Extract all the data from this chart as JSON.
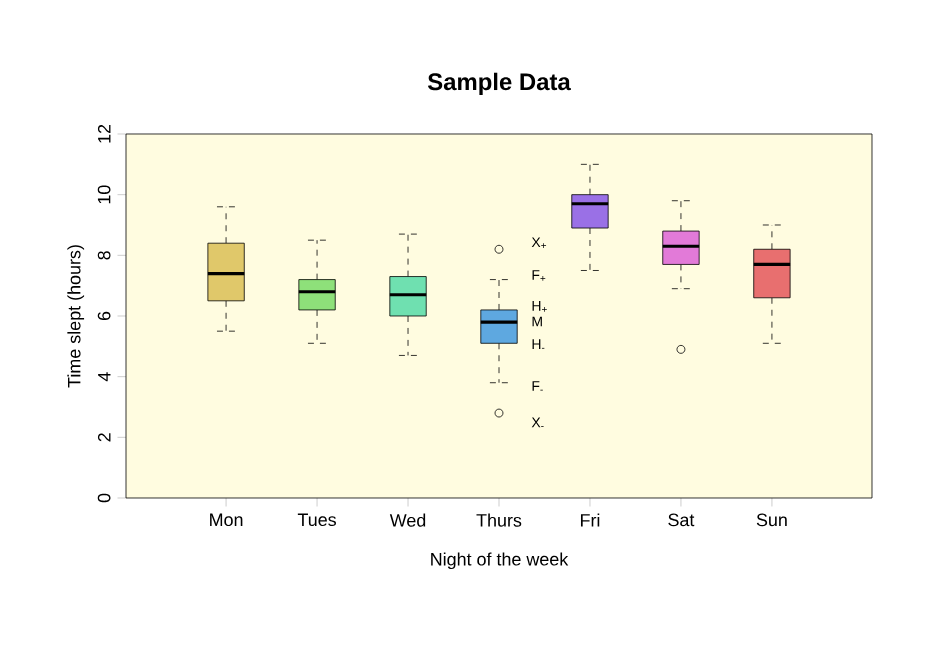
{
  "chart_data": {
    "type": "box",
    "title": "Sample Data",
    "xlabel": "Night of the week",
    "ylabel": "Time slept (hours)",
    "categories": [
      "Mon",
      "Tues",
      "Wed",
      "Thurs",
      "Fri",
      "Sat",
      "Sun"
    ],
    "colors": [
      "#e0c86a",
      "#8ee07a",
      "#6fe0b0",
      "#5ea8e0",
      "#9a70e6",
      "#e27ad8",
      "#e86f6f"
    ],
    "boxes": [
      {
        "low": 5.5,
        "q1": 6.5,
        "median": 7.4,
        "q3": 8.4,
        "high": 9.6
      },
      {
        "low": 5.1,
        "q1": 6.2,
        "median": 6.8,
        "q3": 7.2,
        "high": 8.5
      },
      {
        "low": 4.7,
        "q1": 6.0,
        "median": 6.7,
        "q3": 7.3,
        "high": 8.7
      },
      {
        "low": 3.8,
        "q1": 5.1,
        "median": 5.8,
        "q3": 6.2,
        "high": 7.2,
        "outliers": [
          8.2,
          2.8
        ]
      },
      {
        "low": 7.5,
        "q1": 8.9,
        "median": 9.7,
        "q3": 10.0,
        "high": 11.0
      },
      {
        "low": 6.9,
        "q1": 7.7,
        "median": 8.3,
        "q3": 8.8,
        "high": 9.8,
        "outliers": [
          4.9
        ]
      },
      {
        "low": 5.1,
        "q1": 6.6,
        "median": 7.7,
        "q3": 8.2,
        "high": 9.0
      }
    ],
    "ylim": [
      0,
      12
    ],
    "yticks": [
      0,
      2,
      4,
      6,
      8,
      10,
      12
    ],
    "annotations": [
      "X$_{+}$",
      "F$_{+}$",
      "H$_{+}$",
      "M",
      "H$_{-}$",
      "F$_{-}$",
      "X$_{-}$"
    ]
  }
}
